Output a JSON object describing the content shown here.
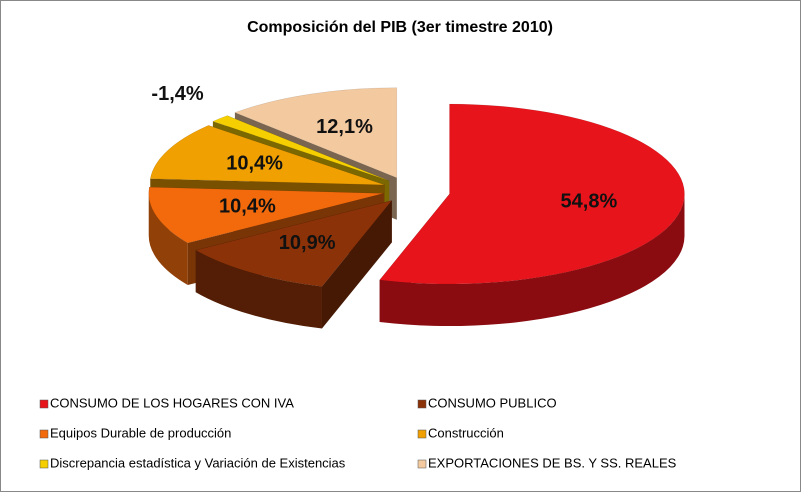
{
  "chart_data": {
    "type": "pie",
    "title": "Composición del PIB (3er timestre 2010)",
    "categories": [
      "CONSUMO DE LOS HOGARES CON IVA",
      "CONSUMO PUBLICO",
      "Equipos Durable de producción",
      "Construcción",
      "Discrepancia estadística y Variación de Existencias",
      "EXPORTACIONES DE BS. Y SS. REALES"
    ],
    "values": [
      54.8,
      10.9,
      10.4,
      10.4,
      -1.4,
      12.1
    ],
    "value_labels": [
      "54,8%",
      "10,9%",
      "10,4%",
      "10,4%",
      "-1,4%",
      "12,1%"
    ],
    "colors": [
      "#e8141b",
      "#8b3208",
      "#f26a0c",
      "#f0a000",
      "#f5cf00",
      "#f3c9a0"
    ],
    "legend": "bottom"
  }
}
